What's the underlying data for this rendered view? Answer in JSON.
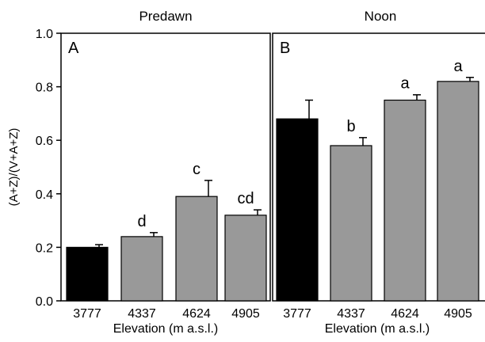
{
  "chart_data": [
    {
      "type": "bar",
      "panel_label": "A",
      "title": "Predawn",
      "xlabel": "Elevation (m a.s.l.)",
      "ylabel": "(A+Z)/(V+A+Z)",
      "ylim": [
        0,
        1.0
      ],
      "yticks": [
        "0.0",
        "0.2",
        "0.4",
        "0.6",
        "0.8",
        "1.0"
      ],
      "categories": [
        "3777",
        "4337",
        "4624",
        "4905"
      ],
      "values": [
        0.2,
        0.24,
        0.39,
        0.32
      ],
      "errors": [
        0.01,
        0.015,
        0.06,
        0.02
      ],
      "letters": [
        "",
        "d",
        "c",
        "cd"
      ],
      "bar_colors": [
        "#000000",
        "#999999",
        "#999999",
        "#999999"
      ]
    },
    {
      "type": "bar",
      "panel_label": "B",
      "title": "Noon",
      "xlabel": "Elevation (m a.s.l.)",
      "ylabel": "",
      "ylim": [
        0,
        1.0
      ],
      "categories": [
        "3777",
        "4337",
        "4624",
        "4905"
      ],
      "values": [
        0.68,
        0.58,
        0.75,
        0.82
      ],
      "errors": [
        0.07,
        0.03,
        0.02,
        0.015
      ],
      "letters": [
        "",
        "b",
        "a",
        "a"
      ],
      "bar_colors": [
        "#000000",
        "#999999",
        "#999999",
        "#999999"
      ]
    }
  ]
}
